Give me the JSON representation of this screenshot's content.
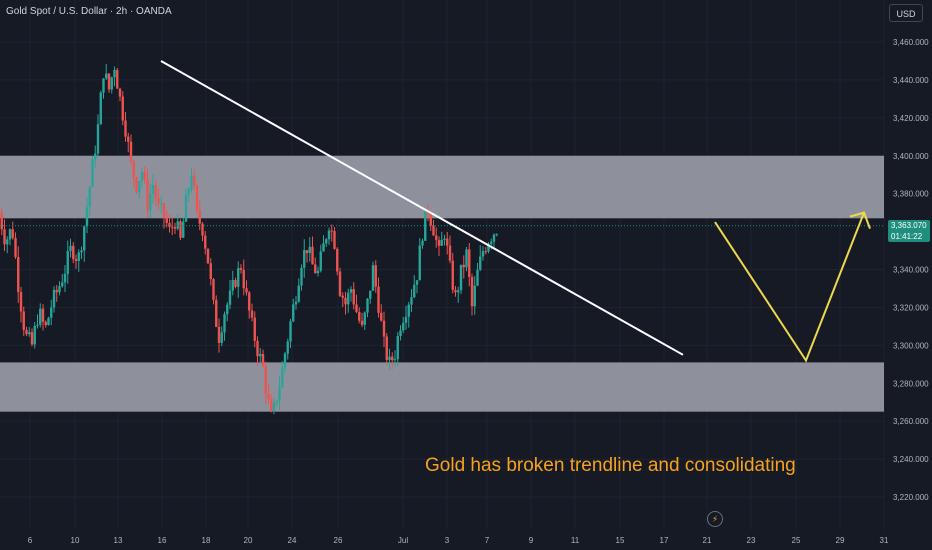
{
  "header": {
    "title": "Gold Spot / U.S. Dollar · 2h · OANDA"
  },
  "toolbar": {
    "currency_label": "USD"
  },
  "annotation": {
    "text": "Gold has broken trendline and consolidating"
  },
  "price_tag": {
    "price": "3,363.070",
    "countdown": "01:41:22"
  },
  "icons": {
    "replay": "lightning-icon"
  },
  "colors": {
    "background": "#161a25",
    "up_candle": "#26a69a",
    "down_candle": "#ef5350",
    "zone": "#9598a1",
    "trendline": "#ffffff",
    "projection": "#f0d84b",
    "annotation": "#f6a21e"
  },
  "chart_data": {
    "type": "candlestick",
    "y_axis": {
      "range": [
        3210,
        3470
      ],
      "ticks": [
        {
          "value": 3460,
          "label": "3,460.000"
        },
        {
          "value": 3440,
          "label": "3,440.000"
        },
        {
          "value": 3420,
          "label": "3,420.000"
        },
        {
          "value": 3400,
          "label": "3,400.000"
        },
        {
          "value": 3380,
          "label": "3,380.000"
        },
        {
          "value": 3340,
          "label": "3,340.000"
        },
        {
          "value": 3320,
          "label": "3,320.000"
        },
        {
          "value": 3300,
          "label": "3,300.000"
        },
        {
          "value": 3280,
          "label": "3,280.000"
        },
        {
          "value": 3260,
          "label": "3,260.000"
        },
        {
          "value": 3240,
          "label": "3,240.000"
        },
        {
          "value": 3220,
          "label": "3,220.000"
        }
      ]
    },
    "x_axis": {
      "ticks": [
        {
          "label": "6",
          "day": 6
        },
        {
          "label": "10",
          "day": 10
        },
        {
          "label": "13",
          "day": 13
        },
        {
          "label": "16",
          "day": 16
        },
        {
          "label": "18",
          "day": 18
        },
        {
          "label": "20",
          "day": 20
        },
        {
          "label": "24",
          "day": 24
        },
        {
          "label": "26",
          "day": 26
        },
        {
          "label": "Jul",
          "day": 31
        },
        {
          "label": "3",
          "day": 34
        },
        {
          "label": "7",
          "day": 36
        },
        {
          "label": "9",
          "day": 38
        },
        {
          "label": "11",
          "day": 40
        },
        {
          "label": "15",
          "day": 42
        },
        {
          "label": "17",
          "day": 44
        },
        {
          "label": "21",
          "day": 46
        },
        {
          "label": "23",
          "day": 48
        },
        {
          "label": "25",
          "day": 50
        },
        {
          "label": "29",
          "day": 52
        },
        {
          "label": "31",
          "day": 54
        }
      ]
    },
    "zones": [
      {
        "name": "resistance",
        "top": 3400,
        "bottom": 3367
      },
      {
        "name": "support",
        "top": 3291,
        "bottom": 3265
      }
    ],
    "current_price": 3363.07,
    "price_path": [
      [
        3.0,
        3370
      ],
      [
        3.6,
        3355
      ],
      [
        4.2,
        3362
      ],
      [
        4.8,
        3330
      ],
      [
        5.4,
        3305
      ],
      [
        6.0,
        3300
      ],
      [
        6.6,
        3318
      ],
      [
        7.2,
        3308
      ],
      [
        7.8,
        3322
      ],
      [
        8.4,
        3330
      ],
      [
        9.0,
        3340
      ],
      [
        9.6,
        3352
      ],
      [
        10.2,
        3345
      ],
      [
        10.8,
        3365
      ],
      [
        11.4,
        3390
      ],
      [
        12.0,
        3415
      ],
      [
        12.5,
        3445
      ],
      [
        13.0,
        3435
      ],
      [
        13.5,
        3448
      ],
      [
        14.0,
        3430
      ],
      [
        14.5,
        3415
      ],
      [
        15.0,
        3395
      ],
      [
        15.5,
        3385
      ],
      [
        16.0,
        3392
      ],
      [
        16.5,
        3375
      ],
      [
        17.0,
        3385
      ],
      [
        17.5,
        3372
      ],
      [
        18.0,
        3368
      ],
      [
        18.5,
        3360
      ],
      [
        19.0,
        3366
      ],
      [
        19.5,
        3355
      ],
      [
        20.0,
        3375
      ],
      [
        20.5,
        3392
      ],
      [
        21.0,
        3368
      ],
      [
        21.5,
        3362
      ],
      [
        22.0,
        3345
      ],
      [
        22.5,
        3320
      ],
      [
        23.0,
        3305
      ],
      [
        23.5,
        3318
      ],
      [
        24.0,
        3325
      ],
      [
        24.5,
        3335
      ],
      [
        25.0,
        3342
      ],
      [
        25.5,
        3325
      ],
      [
        26.0,
        3310
      ],
      [
        26.5,
        3298
      ],
      [
        27.0,
        3288
      ],
      [
        27.4,
        3272
      ],
      [
        27.8,
        3260
      ],
      [
        28.2,
        3272
      ],
      [
        28.6,
        3282
      ],
      [
        29.0,
        3296
      ],
      [
        29.5,
        3312
      ],
      [
        30.0,
        3328
      ],
      [
        30.5,
        3345
      ],
      [
        31.0,
        3352
      ],
      [
        31.5,
        3342
      ],
      [
        32.0,
        3338
      ],
      [
        32.5,
        3352
      ],
      [
        33.0,
        3365
      ],
      [
        33.5,
        3355
      ],
      [
        34.0,
        3330
      ],
      [
        34.5,
        3322
      ],
      [
        35.0,
        3330
      ],
      [
        35.5,
        3318
      ],
      [
        36.0,
        3308
      ],
      [
        36.5,
        3322
      ],
      [
        37.0,
        3340
      ],
      [
        37.5,
        3322
      ],
      [
        38.0,
        3300
      ],
      [
        38.5,
        3290
      ],
      [
        39.0,
        3296
      ],
      [
        39.5,
        3312
      ],
      [
        40.0,
        3320
      ],
      [
        40.5,
        3328
      ],
      [
        41.0,
        3338
      ],
      [
        41.5,
        3360
      ],
      [
        42.0,
        3372
      ],
      [
        42.5,
        3362
      ],
      [
        43.0,
        3348
      ],
      [
        43.5,
        3360
      ],
      [
        44.0,
        3340
      ],
      [
        44.5,
        3325
      ],
      [
        45.0,
        3338
      ],
      [
        45.5,
        3348
      ],
      [
        46.0,
        3320
      ],
      [
        46.5,
        3338
      ],
      [
        47.0,
        3350
      ],
      [
        47.5,
        3356
      ],
      [
        48.0,
        3360
      ],
      [
        48.4,
        3363
      ]
    ],
    "trendline": {
      "from": [
        15.8,
        3450
      ],
      "to": [
        63.0,
        3295
      ]
    },
    "projection": [
      [
        66.0,
        3365
      ],
      [
        74.5,
        3292
      ],
      [
        80.0,
        3370
      ]
    ]
  }
}
